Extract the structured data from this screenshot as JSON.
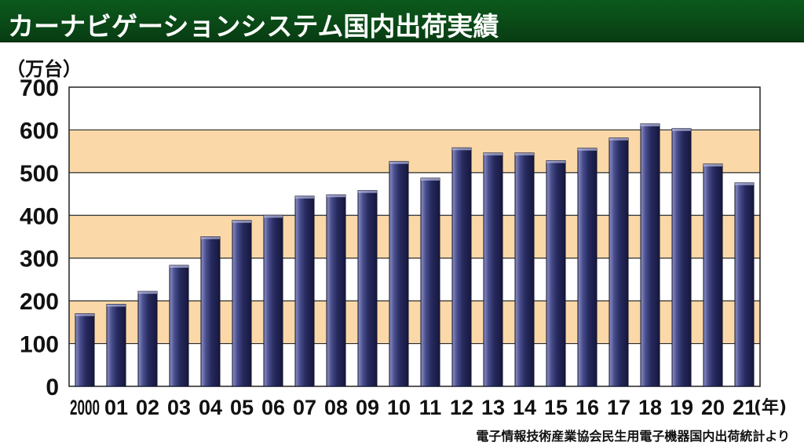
{
  "header": {
    "title": "カーナビゲーションシステム国内出荷実績"
  },
  "colors": {
    "title_bg": "#0a4a17",
    "band": "#fad8a8",
    "bar": "#262a5e",
    "bar_highlight": "#8f93c8"
  },
  "chart_data": {
    "type": "bar",
    "title": "カーナビゲーションシステム国内出荷実績",
    "ylabel": "（万台）",
    "xlabel": "(年)",
    "ylim": [
      0,
      700
    ],
    "yticks": [
      0,
      100,
      200,
      300,
      400,
      500,
      600,
      700
    ],
    "grid": true,
    "categories": [
      "2000",
      "01",
      "02",
      "03",
      "04",
      "05",
      "06",
      "07",
      "08",
      "09",
      "10",
      "11",
      "12",
      "13",
      "14",
      "15",
      "16",
      "17",
      "18",
      "19",
      "20",
      "21"
    ],
    "series": [
      {
        "values": [
          170,
          192,
          222,
          283,
          350,
          388,
          400,
          445,
          448,
          458,
          526,
          487,
          558,
          546,
          546,
          528,
          557,
          581,
          614,
          603,
          520,
          476
        ]
      }
    ],
    "source": "電子情報技術産業協会民生用電子機器国内出荷統計より"
  }
}
